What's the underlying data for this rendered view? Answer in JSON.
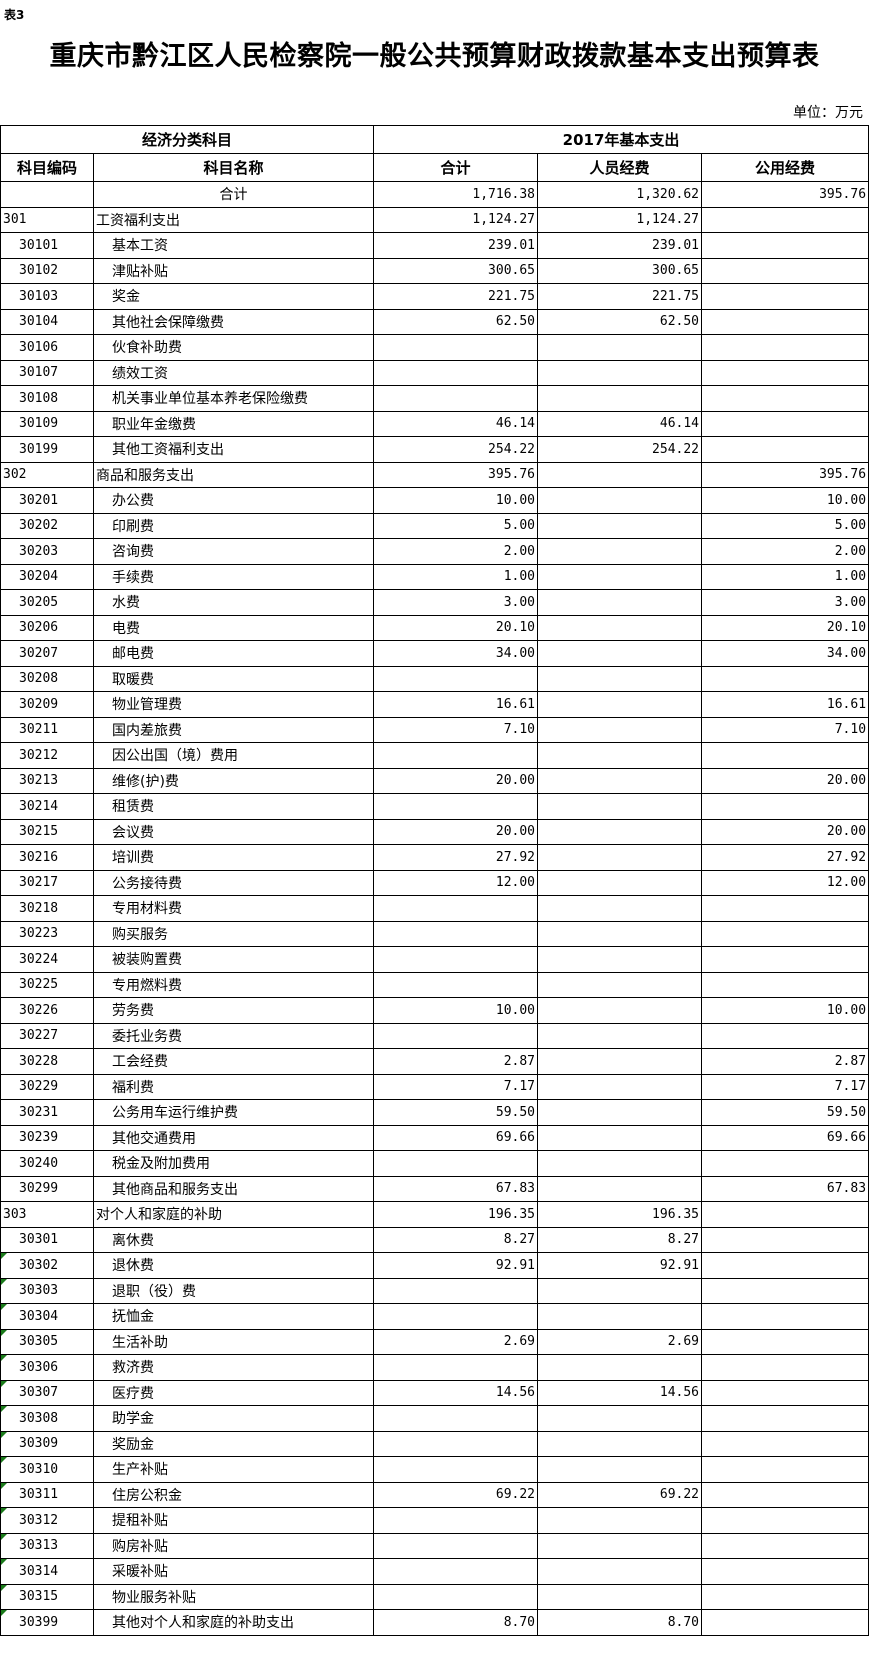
{
  "table_tag": "表3",
  "title": "重庆市黔江区人民检察院一般公共预算财政拨款基本支出预算表",
  "unit": "单位：万元",
  "header": {
    "group_left": "经济分类科目",
    "group_right": "2017年基本支出",
    "col_code": "科目编码",
    "col_name": "科目名称",
    "col_total": "合计",
    "col_personnel": "人员经费",
    "col_public": "公用经费"
  },
  "total_row": {
    "name": "合计",
    "total": "1,716.38",
    "personnel": "1,320.62",
    "public": "395.76"
  },
  "rows": [
    {
      "code": "301",
      "name": "工资福利支出",
      "total": "1,124.27",
      "personnel": "1,124.27",
      "public": "",
      "level": 1
    },
    {
      "code": "30101",
      "name": "基本工资",
      "total": "239.01",
      "personnel": "239.01",
      "public": "",
      "level": 2
    },
    {
      "code": "30102",
      "name": "津贴补贴",
      "total": "300.65",
      "personnel": "300.65",
      "public": "",
      "level": 2
    },
    {
      "code": "30103",
      "name": "奖金",
      "total": "221.75",
      "personnel": "221.75",
      "public": "",
      "level": 2
    },
    {
      "code": "30104",
      "name": "其他社会保障缴费",
      "total": "62.50",
      "personnel": "62.50",
      "public": "",
      "level": 2
    },
    {
      "code": "30106",
      "name": "伙食补助费",
      "total": "",
      "personnel": "",
      "public": "",
      "level": 2
    },
    {
      "code": "30107",
      "name": "绩效工资",
      "total": "",
      "personnel": "",
      "public": "",
      "level": 2
    },
    {
      "code": "30108",
      "name": "机关事业单位基本养老保险缴费",
      "total": "",
      "personnel": "",
      "public": "",
      "level": 2
    },
    {
      "code": "30109",
      "name": "职业年金缴费",
      "total": "46.14",
      "personnel": "46.14",
      "public": "",
      "level": 2
    },
    {
      "code": "30199",
      "name": "其他工资福利支出",
      "total": "254.22",
      "personnel": "254.22",
      "public": "",
      "level": 2
    },
    {
      "code": "302",
      "name": "商品和服务支出",
      "total": "395.76",
      "personnel": "",
      "public": "395.76",
      "level": 1
    },
    {
      "code": "30201",
      "name": "办公费",
      "total": "10.00",
      "personnel": "",
      "public": "10.00",
      "level": 2
    },
    {
      "code": "30202",
      "name": "印刷费",
      "total": "5.00",
      "personnel": "",
      "public": "5.00",
      "level": 2
    },
    {
      "code": "30203",
      "name": "咨询费",
      "total": "2.00",
      "personnel": "",
      "public": "2.00",
      "level": 2
    },
    {
      "code": "30204",
      "name": "手续费",
      "total": "1.00",
      "personnel": "",
      "public": "1.00",
      "level": 2
    },
    {
      "code": "30205",
      "name": "水费",
      "total": "3.00",
      "personnel": "",
      "public": "3.00",
      "level": 2
    },
    {
      "code": "30206",
      "name": "电费",
      "total": "20.10",
      "personnel": "",
      "public": "20.10",
      "level": 2
    },
    {
      "code": "30207",
      "name": "邮电费",
      "total": "34.00",
      "personnel": "",
      "public": "34.00",
      "level": 2
    },
    {
      "code": "30208",
      "name": "取暖费",
      "total": "",
      "personnel": "",
      "public": "",
      "level": 2
    },
    {
      "code": "30209",
      "name": "物业管理费",
      "total": "16.61",
      "personnel": "",
      "public": "16.61",
      "level": 2
    },
    {
      "code": "30211",
      "name": "国内差旅费",
      "total": "7.10",
      "personnel": "",
      "public": "7.10",
      "level": 2
    },
    {
      "code": "30212",
      "name": "因公出国（境）费用",
      "total": "",
      "personnel": "",
      "public": "",
      "level": 2
    },
    {
      "code": "30213",
      "name": "维修(护)费",
      "total": "20.00",
      "personnel": "",
      "public": "20.00",
      "level": 2
    },
    {
      "code": "30214",
      "name": "租赁费",
      "total": "",
      "personnel": "",
      "public": "",
      "level": 2
    },
    {
      "code": "30215",
      "name": "会议费",
      "total": "20.00",
      "personnel": "",
      "public": "20.00",
      "level": 2
    },
    {
      "code": "30216",
      "name": "培训费",
      "total": "27.92",
      "personnel": "",
      "public": "27.92",
      "level": 2
    },
    {
      "code": "30217",
      "name": "公务接待费",
      "total": "12.00",
      "personnel": "",
      "public": "12.00",
      "level": 2
    },
    {
      "code": "30218",
      "name": "专用材料费",
      "total": "",
      "personnel": "",
      "public": "",
      "level": 2
    },
    {
      "code": "30223",
      "name": "购买服务",
      "total": "",
      "personnel": "",
      "public": "",
      "level": 2
    },
    {
      "code": "30224",
      "name": "被装购置费",
      "total": "",
      "personnel": "",
      "public": "",
      "level": 2
    },
    {
      "code": "30225",
      "name": "专用燃料费",
      "total": "",
      "personnel": "",
      "public": "",
      "level": 2
    },
    {
      "code": "30226",
      "name": "劳务费",
      "total": "10.00",
      "personnel": "",
      "public": "10.00",
      "level": 2
    },
    {
      "code": "30227",
      "name": "委托业务费",
      "total": "",
      "personnel": "",
      "public": "",
      "level": 2
    },
    {
      "code": "30228",
      "name": "工会经费",
      "total": "2.87",
      "personnel": "",
      "public": "2.87",
      "level": 2
    },
    {
      "code": "30229",
      "name": "福利费",
      "total": "7.17",
      "personnel": "",
      "public": "7.17",
      "level": 2
    },
    {
      "code": "30231",
      "name": "公务用车运行维护费",
      "total": "59.50",
      "personnel": "",
      "public": "59.50",
      "level": 2
    },
    {
      "code": "30239",
      "name": "其他交通费用",
      "total": "69.66",
      "personnel": "",
      "public": "69.66",
      "level": 2
    },
    {
      "code": "30240",
      "name": "税金及附加费用",
      "total": "",
      "personnel": "",
      "public": "",
      "level": 2
    },
    {
      "code": "30299",
      "name": "其他商品和服务支出",
      "total": "67.83",
      "personnel": "",
      "public": "67.83",
      "level": 2
    },
    {
      "code": "303",
      "name": "对个人和家庭的补助",
      "total": "196.35",
      "personnel": "196.35",
      "public": "",
      "level": 1
    },
    {
      "code": "30301",
      "name": "离休费",
      "total": "8.27",
      "personnel": "8.27",
      "public": "",
      "level": 2
    },
    {
      "code": "30302",
      "name": "退休费",
      "total": "92.91",
      "personnel": "92.91",
      "public": "",
      "level": 2,
      "flag": true
    },
    {
      "code": "30303",
      "name": "退职（役）费",
      "total": "",
      "personnel": "",
      "public": "",
      "level": 2,
      "flag": true
    },
    {
      "code": "30304",
      "name": "抚恤金",
      "total": "",
      "personnel": "",
      "public": "",
      "level": 2,
      "flag": true
    },
    {
      "code": "30305",
      "name": "生活补助",
      "total": "2.69",
      "personnel": "2.69",
      "public": "",
      "level": 2,
      "flag": true
    },
    {
      "code": "30306",
      "name": "救济费",
      "total": "",
      "personnel": "",
      "public": "",
      "level": 2,
      "flag": true
    },
    {
      "code": "30307",
      "name": "医疗费",
      "total": "14.56",
      "personnel": "14.56",
      "public": "",
      "level": 2,
      "flag": true
    },
    {
      "code": "30308",
      "name": "助学金",
      "total": "",
      "personnel": "",
      "public": "",
      "level": 2,
      "flag": true
    },
    {
      "code": "30309",
      "name": "奖励金",
      "total": "",
      "personnel": "",
      "public": "",
      "level": 2,
      "flag": true
    },
    {
      "code": "30310",
      "name": "生产补贴",
      "total": "",
      "personnel": "",
      "public": "",
      "level": 2,
      "flag": true
    },
    {
      "code": "30311",
      "name": "住房公积金",
      "total": "69.22",
      "personnel": "69.22",
      "public": "",
      "level": 2,
      "flag": true
    },
    {
      "code": "30312",
      "name": "提租补贴",
      "total": "",
      "personnel": "",
      "public": "",
      "level": 2,
      "flag": true
    },
    {
      "code": "30313",
      "name": "购房补贴",
      "total": "",
      "personnel": "",
      "public": "",
      "level": 2,
      "flag": true
    },
    {
      "code": "30314",
      "name": "采暖补贴",
      "total": "",
      "personnel": "",
      "public": "",
      "level": 2,
      "flag": true
    },
    {
      "code": "30315",
      "name": "物业服务补贴",
      "total": "",
      "personnel": "",
      "public": "",
      "level": 2,
      "flag": true
    },
    {
      "code": "30399",
      "name": "其他对个人和家庭的补助支出",
      "total": "8.70",
      "personnel": "8.70",
      "public": "",
      "level": 2,
      "flag": true
    }
  ],
  "colors": {
    "error_indicator": "#1a7a1a",
    "grid": "#000000"
  }
}
